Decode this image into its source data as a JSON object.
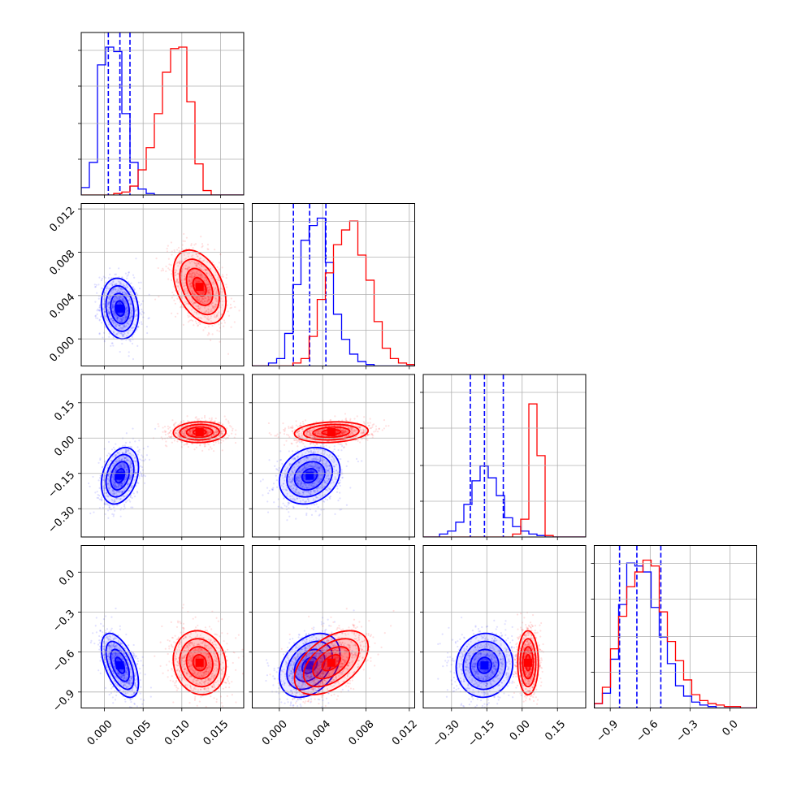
{
  "figure": {
    "background": "#ffffff",
    "grid_color": "#b0b0b0",
    "parameter_count": 4,
    "series_colors": [
      "#0000ff",
      "#ff0000"
    ]
  },
  "chart_data": {
    "type": "corner",
    "title": "",
    "grid": true,
    "legend": "none",
    "parameters": [
      {
        "label": "",
        "range": [
          -0.003,
          0.018
        ],
        "ticks": [
          0.0,
          0.005,
          0.01,
          0.015
        ],
        "tick_labels": [
          "0.000",
          "0.005",
          "0.010",
          "0.015"
        ]
      },
      {
        "label": "",
        "range": [
          -0.0025,
          0.0125
        ],
        "ticks": [
          0.0,
          0.004,
          0.008,
          0.012
        ],
        "tick_labels": [
          "0.000",
          "0.004",
          "0.008",
          "0.012"
        ]
      },
      {
        "label": "",
        "range": [
          -0.42,
          0.27
        ],
        "ticks": [
          -0.3,
          -0.15,
          0.0,
          0.15
        ],
        "tick_labels": [
          "−0.30",
          "−0.15",
          "0.00",
          "0.15"
        ]
      },
      {
        "label": "",
        "range": [
          -1.02,
          0.2
        ],
        "ticks": [
          -0.9,
          -0.6,
          -0.3,
          0.0
        ],
        "tick_labels": [
          "−0.9",
          "−0.6",
          "−0.3",
          "0.0"
        ]
      }
    ],
    "series": [
      {
        "color": "#0000ff",
        "means": [
          0.002,
          0.0028,
          -0.16,
          -0.7
        ],
        "sigmas": [
          0.0012,
          0.0014,
          0.06,
          0.12
        ],
        "correlations": [
          [
            0,
            1,
            -0.15
          ],
          [
            0,
            2,
            0.3
          ],
          [
            0,
            3,
            -0.55
          ],
          [
            1,
            2,
            0.2
          ],
          [
            1,
            3,
            0.35
          ],
          [
            2,
            3,
            0.05
          ]
        ],
        "quantiles": [
          [
            0.0005,
            0.002,
            0.0033
          ],
          [
            0.0013,
            0.0028,
            0.0043
          ],
          [
            -0.22,
            -0.16,
            -0.08
          ],
          [
            -0.83,
            -0.7,
            -0.52
          ]
        ],
        "histograms": [
          [
            0.05,
            0.22,
            0.88,
            1.0,
            0.97,
            0.55,
            0.22,
            0.04,
            0.01,
            0,
            0,
            0,
            0,
            0,
            0,
            0,
            0,
            0,
            0,
            0
          ],
          [
            0,
            0,
            0.02,
            0.05,
            0.22,
            0.55,
            0.85,
            0.95,
            1.0,
            0.7,
            0.35,
            0.18,
            0.08,
            0.03,
            0.01,
            0,
            0,
            0,
            0,
            0
          ],
          [
            0,
            0,
            0.02,
            0.04,
            0.1,
            0.22,
            0.38,
            0.48,
            0.4,
            0.28,
            0.13,
            0.07,
            0.04,
            0.02,
            0.01,
            0,
            0,
            0,
            0,
            0
          ],
          [
            0.03,
            0.1,
            0.33,
            0.7,
            0.98,
            0.96,
            0.92,
            0.68,
            0.48,
            0.3,
            0.15,
            0.08,
            0.04,
            0.02,
            0.01,
            0,
            0,
            0,
            0,
            0
          ]
        ]
      },
      {
        "color": "#ff0000",
        "means": [
          0.0123,
          0.0048,
          0.025,
          -0.68
        ],
        "sigmas": [
          0.0017,
          0.0017,
          0.022,
          0.12
        ],
        "correlations": [
          [
            0,
            1,
            -0.4
          ],
          [
            0,
            2,
            0.05
          ],
          [
            0,
            3,
            -0.1
          ],
          [
            1,
            2,
            0.15
          ],
          [
            1,
            3,
            0.5
          ],
          [
            2,
            3,
            0.0
          ]
        ],
        "quantiles": null,
        "histograms": [
          [
            0,
            0,
            0,
            0,
            0.01,
            0.02,
            0.06,
            0.17,
            0.32,
            0.55,
            0.83,
            0.99,
            1.0,
            0.63,
            0.21,
            0.03,
            0,
            0,
            0,
            0
          ],
          [
            0,
            0,
            0,
            0,
            0,
            0.02,
            0.05,
            0.2,
            0.45,
            0.63,
            0.82,
            0.92,
            0.98,
            0.75,
            0.58,
            0.3,
            0.12,
            0.05,
            0.02,
            0.01
          ],
          [
            0,
            0,
            0,
            0,
            0,
            0,
            0,
            0,
            0,
            0,
            0,
            0.02,
            0.12,
            0.9,
            0.55,
            0.01,
            0,
            0,
            0,
            0
          ],
          [
            0.03,
            0.14,
            0.4,
            0.62,
            0.82,
            0.92,
            1.0,
            0.96,
            0.65,
            0.45,
            0.32,
            0.19,
            0.09,
            0.05,
            0.03,
            0.02,
            0.01,
            0.01,
            0,
            0
          ]
        ]
      }
    ]
  }
}
